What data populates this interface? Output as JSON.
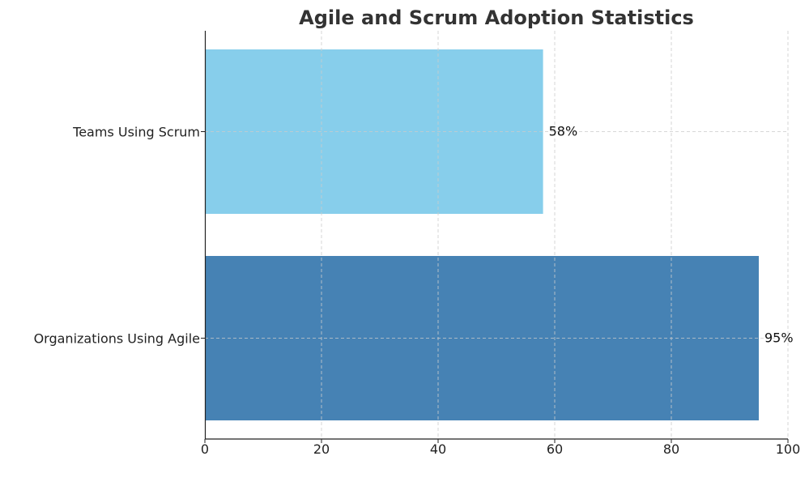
{
  "chart_data": {
    "type": "bar",
    "orientation": "horizontal",
    "title": "Agile and Scrum Adoption Statistics",
    "xlabel": "",
    "ylabel": "",
    "categories": [
      "Organizations Using Agile",
      "Teams Using Scrum"
    ],
    "values": [
      95,
      58
    ],
    "value_labels": [
      "95%",
      "58%"
    ],
    "colors": [
      "#4682b4",
      "#87ceeb"
    ],
    "xlim": [
      0,
      100
    ],
    "xticks": [
      0,
      20,
      40,
      60,
      80,
      100
    ],
    "grid": true
  }
}
